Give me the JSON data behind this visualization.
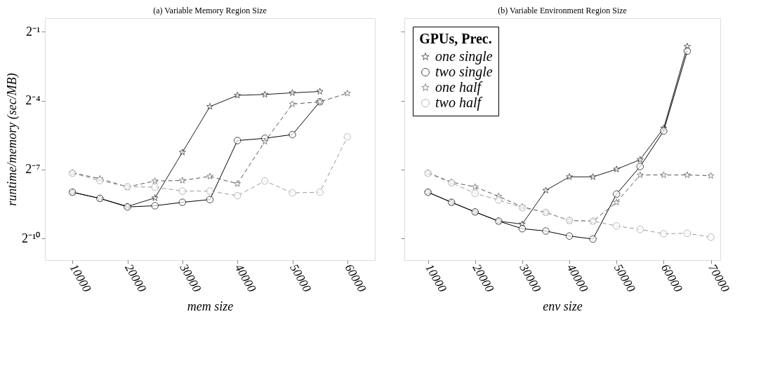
{
  "chart_data": [
    {
      "type": "line",
      "title": "(a) Variable Memory Region Size",
      "xlabel": "mem size",
      "ylabel": "runtime/memory (sec/MB)",
      "log": "y",
      "grid": false,
      "legend": false,
      "xlim": [
        5000,
        65000
      ],
      "xticks": [
        10000,
        20000,
        30000,
        40000,
        50000,
        60000
      ],
      "ylim": [
        0.000507,
        0.753
      ],
      "yticks": [
        {
          "value": 0.5,
          "label": "2⁻¹"
        },
        {
          "value": 0.0625,
          "label": "2⁻⁴"
        },
        {
          "value": 0.0078125,
          "label": "2⁻⁷"
        },
        {
          "value": 0.0009765625,
          "label": "2⁻¹⁰"
        }
      ],
      "series": [
        {
          "color": "#1a1a1a",
          "marker": "star",
          "line_style": "solid",
          "x": [
            10000,
            15000,
            20000,
            25000,
            30000,
            35000,
            40000,
            45000,
            50000,
            55000
          ],
          "values": [
            0.003934,
            0.003262,
            0.00256,
            0.003307,
            0.01314,
            0.05219,
            0.0733,
            0.07533,
            0.07911,
            0.08248
          ]
        },
        {
          "color": "#000000",
          "marker": "circle",
          "line_style": "solid",
          "x": [
            10000,
            15000,
            20000,
            25000,
            30000,
            35000,
            40000,
            45000,
            50000,
            55000
          ],
          "values": [
            0.003934,
            0.003262,
            0.002524,
            0.002613,
            0.0029,
            0.003151,
            0.01871,
            0.02005,
            0.02241,
            0.06037
          ]
        },
        {
          "color": "#555555",
          "marker": "star",
          "line_style": "dashed",
          "x": [
            10000,
            15000,
            20000,
            25000,
            30000,
            35000,
            40000,
            45000,
            50000,
            55000,
            60000
          ],
          "values": [
            0.00709,
            0.005921,
            0.004613,
            0.005524,
            0.005602,
            0.006346,
            0.005084,
            0.0182,
            0.05633,
            0.06037,
            0.07803
          ]
        },
        {
          "color": "#999999",
          "marker": "circle",
          "line_style": "dashed",
          "x": [
            10000,
            15000,
            20000,
            25000,
            30000,
            35000,
            40000,
            45000,
            50000,
            55000,
            60000
          ],
          "values": [
            0.006992,
            0.005602,
            0.004645,
            0.004581,
            0.004072,
            0.004072,
            0.003545,
            0.005524,
            0.003852,
            0.003934,
            0.02091
          ]
        }
      ]
    },
    {
      "type": "line",
      "title": "(b) Variable Environment Region Size",
      "xlabel": "env size",
      "log": "y",
      "grid": false,
      "legend": "top left",
      "legend_title": "GPUs, Prec.",
      "tick_labels": "x",
      "xlim": [
        5000,
        72000
      ],
      "xticks": [
        10000,
        20000,
        30000,
        40000,
        50000,
        60000,
        70000
      ],
      "ylim": [
        0.000507,
        0.753
      ],
      "yticks": [
        {
          "value": 0.5,
          "label": null
        },
        {
          "value": 0.0625,
          "label": null
        },
        {
          "value": 0.0078125,
          "label": null
        },
        {
          "value": 0.0009765625,
          "label": null
        }
      ],
      "series": [
        {
          "name": "one single",
          "color": "#1a1a1a",
          "marker": "star",
          "line_style": "solid",
          "x": [
            10000,
            15000,
            20000,
            25000,
            30000,
            35000,
            40000,
            45000,
            50000,
            55000,
            60000,
            65000
          ],
          "values": [
            0.003934,
            0.0029,
            0.002167,
            0.001642,
            0.001501,
            0.004158,
            0.006258,
            0.006258,
            0.007867,
            0.01052,
            0.02721,
            0.3209
          ]
        },
        {
          "name": "two single",
          "color": "#000000",
          "marker": "circle",
          "line_style": "solid",
          "x": [
            10000,
            15000,
            20000,
            25000,
            30000,
            35000,
            40000,
            45000,
            50000,
            55000,
            60000,
            65000
          ],
          "values": [
            0.003934,
            0.0029,
            0.002167,
            0.001642,
            0.001307,
            0.001219,
            0.001047,
            0.0009564,
            0.003721,
            0.008549,
            0.02503,
            0.2793
          ]
        },
        {
          "name": "one half",
          "color": "#555555",
          "marker": "star",
          "line_style": "dashed",
          "x": [
            10000,
            15000,
            20000,
            25000,
            30000,
            35000,
            40000,
            45000,
            50000,
            55000,
            60000,
            65000,
            70000
          ],
          "values": [
            0.00709,
            0.005336,
            0.004613,
            0.003472,
            0.002524,
            0.002137,
            0.001677,
            0.001642,
            0.0029,
            0.006615,
            0.006615,
            0.006615,
            0.006479
          ]
        },
        {
          "name": "two half",
          "color": "#999999",
          "marker": "circle",
          "line_style": "dashed",
          "x": [
            10000,
            15000,
            20000,
            25000,
            30000,
            35000,
            40000,
            45000,
            50000,
            55000,
            60000,
            65000,
            70000
          ],
          "values": [
            0.006992,
            0.005227,
            0.003799,
            0.003107,
            0.002472,
            0.002137,
            0.001677,
            0.001642,
            0.00142,
            0.00128,
            0.001122,
            0.001137,
            0.001011
          ]
        }
      ]
    }
  ]
}
